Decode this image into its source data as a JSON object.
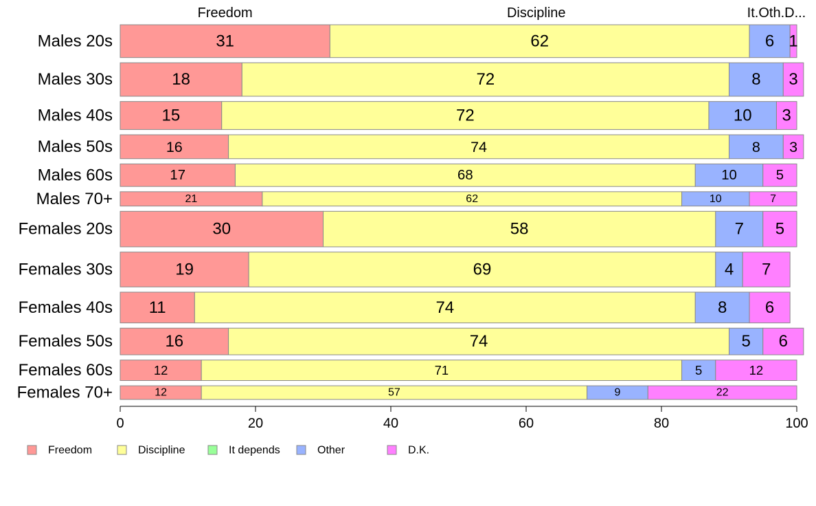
{
  "chart_data": {
    "type": "bar",
    "orientation": "horizontal",
    "stacked": true,
    "variable_width": true,
    "categories": [
      "Males 20s",
      "Males 30s",
      "Males 40s",
      "Males 50s",
      "Males 60s",
      "Males 70+",
      "Females 20s",
      "Females 30s",
      "Females 40s",
      "Females 50s",
      "Females 60s",
      "Females 70+"
    ],
    "category_weights": [
      48,
      49,
      41,
      35,
      33,
      21,
      52,
      51,
      45,
      39,
      30,
      20
    ],
    "series": [
      {
        "name": "Freedom",
        "color": "#ff9896",
        "values": [
          31,
          18,
          15,
          16,
          17,
          21,
          30,
          19,
          11,
          16,
          12,
          12
        ]
      },
      {
        "name": "Discipline",
        "color": "#ffff99",
        "values": [
          62,
          72,
          72,
          74,
          68,
          62,
          58,
          69,
          74,
          74,
          71,
          57
        ]
      },
      {
        "name": "It depends",
        "color": "#99ff99",
        "values": [
          0,
          0,
          0,
          0,
          0,
          0,
          0,
          0,
          0,
          0,
          0,
          0
        ]
      },
      {
        "name": "Other",
        "color": "#99b3ff",
        "values": [
          6,
          8,
          10,
          8,
          10,
          10,
          7,
          4,
          8,
          5,
          5,
          9
        ]
      },
      {
        "name": "D.K.",
        "color": "#ff80ff",
        "values": [
          1,
          3,
          3,
          3,
          5,
          7,
          5,
          7,
          6,
          6,
          12,
          22
        ]
      }
    ],
    "top_labels": [
      {
        "text": "Freedom",
        "at": 15.5
      },
      {
        "text": "Discipline",
        "at": 61.5
      },
      {
        "text": "It.Oth.D...",
        "at": 97
      }
    ],
    "xlim": [
      0,
      100
    ],
    "xticks": [
      0,
      20,
      40,
      60,
      80,
      100
    ],
    "title": "",
    "xlabel": "",
    "ylabel": "",
    "legend_position": "bottom-left",
    "grid": false
  }
}
